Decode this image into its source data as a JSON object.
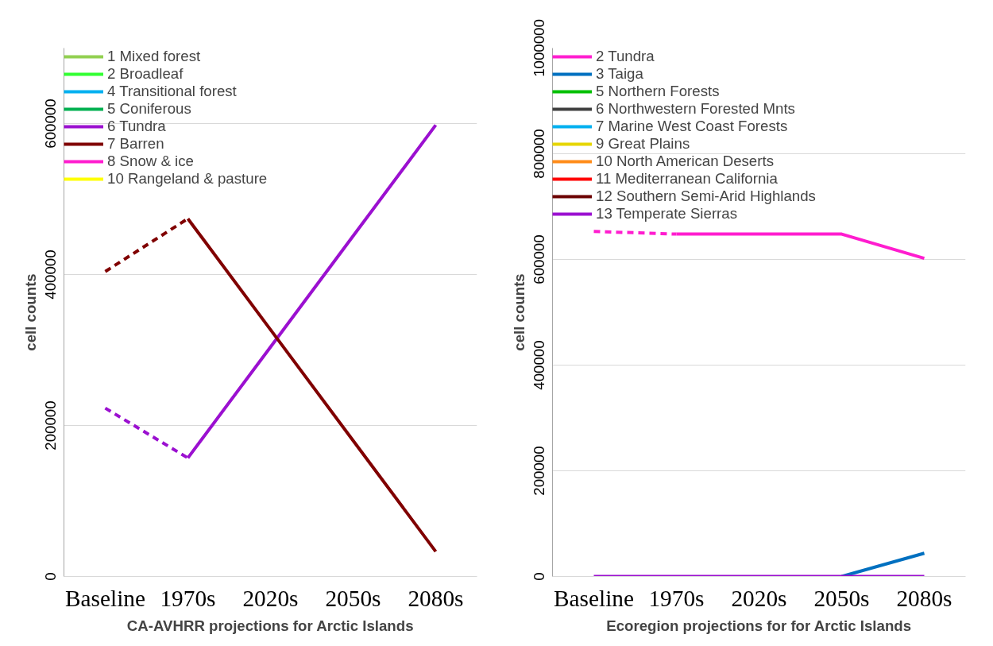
{
  "chart_data": [
    {
      "type": "line",
      "xlabel": "CA-AVHRR projections for Arctic Islands",
      "ylabel": "cell counts",
      "categories": [
        "Baseline",
        "1970s",
        "2020s",
        "2050s",
        "2080s"
      ],
      "ylim": [
        0,
        700000
      ],
      "yticks": [
        0,
        200000,
        400000,
        600000
      ],
      "grid": "y",
      "legend": "top left",
      "line_style": "solid",
      "series": [
        {
          "name": "1 Mixed forest",
          "color": "#92d050",
          "values": [
            null,
            null,
            null,
            null,
            null
          ]
        },
        {
          "name": "2 Broadleaf",
          "color": "#33ff33",
          "values": [
            null,
            null,
            null,
            null,
            null
          ]
        },
        {
          "name": "4 Transitional forest",
          "color": "#00b0f0",
          "values": [
            null,
            null,
            null,
            null,
            null
          ]
        },
        {
          "name": "5 Coniferous",
          "color": "#00b050",
          "values": [
            null,
            null,
            null,
            null,
            null
          ]
        },
        {
          "name": "6 Tundra",
          "color": "#9b10d0",
          "values": [
            null,
            157000,
            304000,
            451000,
            598000
          ]
        },
        {
          "name": "7 Barren",
          "color": "#800000",
          "values": [
            null,
            474000,
            327000,
            180000,
            33000
          ]
        },
        {
          "name": "8 Snow & ice",
          "color": "#ff1dcf",
          "values": [
            null,
            null,
            null,
            null,
            null
          ]
        },
        {
          "name": "10 Rangeland & pasture",
          "color": "#ffff00",
          "values": [
            null,
            null,
            null,
            null,
            null
          ]
        },
        {
          "color": "#9b10d0",
          "line_style": "dashed",
          "values": [
            223000,
            157000,
            null,
            null,
            null
          ]
        },
        {
          "color": "#800000",
          "line_style": "dashed",
          "values": [
            404000,
            474000,
            null,
            null,
            null
          ]
        }
      ]
    },
    {
      "type": "line",
      "xlabel": "Ecoregion projections for for Arctic Islands",
      "ylabel": "cell counts",
      "categories": [
        "Baseline",
        "1970s",
        "2020s",
        "2050s",
        "2080s"
      ],
      "ylim": [
        0,
        1000000
      ],
      "yticks": [
        0,
        200000,
        400000,
        600000,
        800000,
        1000000
      ],
      "grid": "y",
      "legend": "top left",
      "line_style": "solid",
      "series": [
        {
          "name": "2 Tundra",
          "color": "#ff1dcf",
          "values": [
            null,
            648000,
            648000,
            648000,
            602000
          ]
        },
        {
          "name": "3 Taiga",
          "color": "#0070c0",
          "values": [
            null,
            null,
            null,
            0,
            44000
          ]
        },
        {
          "name": "5 Northern Forests",
          "color": "#00c000",
          "values": [
            null,
            null,
            null,
            null,
            null
          ]
        },
        {
          "name": "6 Northwestern Forested Mnts",
          "color": "#404040",
          "values": [
            null,
            null,
            null,
            null,
            null
          ]
        },
        {
          "name": "7 Marine West Coast Forests",
          "color": "#00b0f0",
          "values": [
            null,
            null,
            null,
            null,
            null
          ]
        },
        {
          "name": "9 Great Plains",
          "color": "#e6d600",
          "values": [
            null,
            null,
            null,
            null,
            null
          ]
        },
        {
          "name": "10 North American Deserts",
          "color": "#ff8c1a",
          "values": [
            null,
            null,
            null,
            null,
            null
          ]
        },
        {
          "name": "11 Mediterranean California",
          "color": "#ff0000",
          "values": [
            null,
            null,
            null,
            null,
            null
          ]
        },
        {
          "name": "12 Southern Semi-Arid Highlands",
          "color": "#6b0000",
          "values": [
            null,
            null,
            null,
            null,
            null
          ]
        },
        {
          "name": "13 Temperate Sierras",
          "color": "#9b10d0",
          "values": [
            0,
            0,
            0,
            0,
            0
          ]
        },
        {
          "color": "#ff1dcf",
          "line_style": "dashed",
          "values": [
            653000,
            648000,
            null,
            null,
            null
          ]
        }
      ]
    }
  ]
}
